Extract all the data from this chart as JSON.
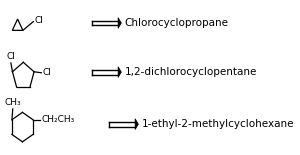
{
  "bg_color": "#ffffff",
  "text_color": "#000000",
  "row1_name": "Chlorocyclopropane",
  "row2_name": "1,2-dichlorocyclopentane",
  "row3_name": "1-ethyl-2-methylcyclohexane",
  "font_size_name": 7.5,
  "font_size_label": 6.5,
  "fig_width": 3.0,
  "fig_height": 1.55
}
